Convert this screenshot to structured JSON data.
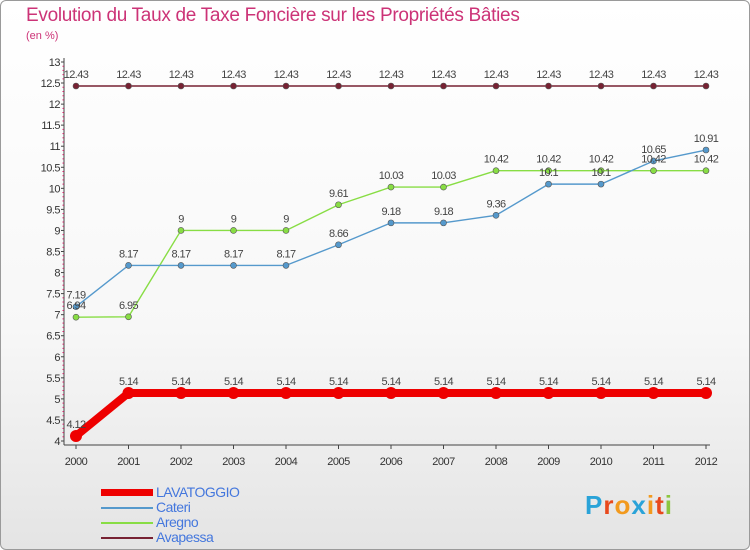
{
  "chart_data": {
    "type": "line",
    "title": "Evolution du Taux de Taxe Foncière sur les Propriétés Bâties",
    "unit_label": "(en %)",
    "x": [
      "2000",
      "2001",
      "2002",
      "2003",
      "2004",
      "2005",
      "2006",
      "2007",
      "2008",
      "2009",
      "2010",
      "2011",
      "2012"
    ],
    "y_ticks": [
      "4",
      "4.5",
      "5",
      "5.5",
      "6",
      "6.5",
      "7",
      "7.5",
      "8",
      "8.5",
      "9",
      "9.5",
      "10",
      "10.5",
      "11",
      "11.5",
      "12",
      "12.5",
      "13"
    ],
    "ylim": [
      4,
      13
    ],
    "grid": false,
    "legend_position": "bottom-left",
    "series": [
      {
        "name": "LAVATOGGIO",
        "color": "#ee0000",
        "values": [
          4.12,
          5.14,
          5.14,
          5.14,
          5.14,
          5.14,
          5.14,
          5.14,
          5.14,
          5.14,
          5.14,
          5.14,
          5.14
        ],
        "labels": [
          "4.12",
          "5.14",
          "5.14",
          "5.14",
          "5.14",
          "5.14",
          "5.14",
          "5.14",
          "5.14",
          "5.14",
          "5.14",
          "5.14",
          "5.14"
        ]
      },
      {
        "name": "Cateri",
        "color": "#5599cc",
        "values": [
          7.19,
          8.17,
          8.17,
          8.17,
          8.17,
          8.66,
          9.18,
          9.18,
          9.36,
          10.1,
          10.1,
          10.65,
          10.91
        ],
        "labels": [
          "7.19",
          "8.17",
          "8.17",
          "8.17",
          "8.17",
          "8.66",
          "9.18",
          "9.18",
          "9.36",
          "10.1",
          "10.1",
          "10.65",
          "10.91"
        ]
      },
      {
        "name": "Aregno",
        "color": "#88dd44",
        "values": [
          6.94,
          6.95,
          9,
          9,
          9,
          9.61,
          10.03,
          10.03,
          10.42,
          10.42,
          10.42,
          10.42,
          10.42
        ],
        "labels": [
          "6.94",
          "6.95",
          "9",
          "9",
          "9",
          "9.61",
          "10.03",
          "10.03",
          "10.42",
          "10.42",
          "10.42",
          "10.42",
          "10.42"
        ]
      },
      {
        "name": "Avapessa",
        "color": "#772233",
        "values": [
          12.43,
          12.43,
          12.43,
          12.43,
          12.43,
          12.43,
          12.43,
          12.43,
          12.43,
          12.43,
          12.43,
          12.43,
          12.43
        ],
        "labels": [
          "12.43",
          "12.43",
          "12.43",
          "12.43",
          "12.43",
          "12.43",
          "12.43",
          "12.43",
          "12.43",
          "12.43",
          "12.43",
          "12.43",
          "12.43"
        ]
      }
    ]
  },
  "logo": {
    "text": "Proxiti",
    "letter_colors": [
      "#2aa3d8",
      "#e8491d",
      "#f29a1e",
      "#2aa3d8",
      "#f29a1e",
      "#e8491d",
      "#8cc63f"
    ]
  }
}
